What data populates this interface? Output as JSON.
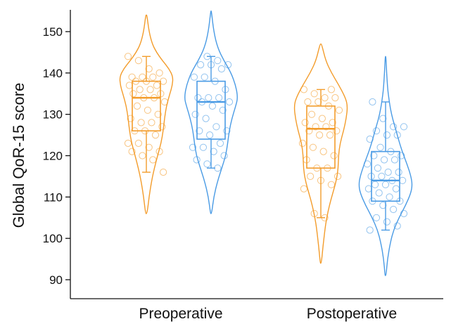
{
  "chart_data": {
    "type": "violin",
    "ylabel": "Global QoR-15 score",
    "ylim": [
      87,
      155
    ],
    "yticks": [
      90,
      100,
      110,
      120,
      130,
      140,
      150
    ],
    "categories": [
      "Preoperative",
      "Postoperative"
    ],
    "series_colors": [
      "#F39C2B",
      "#4A9BE5"
    ],
    "grid": false,
    "legend": "none",
    "groups": [
      {
        "category": "Preoperative",
        "color": "#F39C2B",
        "violin_range": [
          106,
          154
        ],
        "density": [
          [
            106,
            0.03
          ],
          [
            110,
            0.1
          ],
          [
            114,
            0.2
          ],
          [
            117,
            0.3
          ],
          [
            120,
            0.42
          ],
          [
            123,
            0.55
          ],
          [
            126,
            0.63
          ],
          [
            129,
            0.68
          ],
          [
            132,
            0.75
          ],
          [
            135,
            0.88
          ],
          [
            137,
            0.97
          ],
          [
            139,
            1.0
          ],
          [
            141,
            0.85
          ],
          [
            143,
            0.6
          ],
          [
            145,
            0.38
          ],
          [
            147,
            0.22
          ],
          [
            150,
            0.1
          ],
          [
            154,
            0.02
          ]
        ],
        "box": {
          "whisker_low": 116,
          "q1": 126,
          "median": 134,
          "q3": 138,
          "whisker_high": 144
        },
        "points": [
          144,
          143,
          141,
          140,
          139,
          139,
          139,
          138,
          138,
          138,
          137,
          137,
          136,
          136,
          135,
          135,
          134,
          134,
          133,
          132,
          131,
          130,
          129,
          128,
          128,
          127,
          126,
          126,
          125,
          123,
          123,
          122,
          121,
          121,
          120,
          119,
          116
        ]
      },
      {
        "category": "Preoperative",
        "color": "#4A9BE5",
        "violin_range": [
          106,
          155
        ],
        "density": [
          [
            106,
            0.02
          ],
          [
            110,
            0.1
          ],
          [
            114,
            0.25
          ],
          [
            117,
            0.4
          ],
          [
            120,
            0.55
          ],
          [
            123,
            0.62
          ],
          [
            126,
            0.68
          ],
          [
            129,
            0.78
          ],
          [
            132,
            0.92
          ],
          [
            134,
            1.0
          ],
          [
            137,
            0.92
          ],
          [
            140,
            0.75
          ],
          [
            143,
            0.48
          ],
          [
            146,
            0.25
          ],
          [
            150,
            0.1
          ],
          [
            155,
            0.01
          ]
        ],
        "box": {
          "whisker_low": 117,
          "q1": 124,
          "median": 133,
          "q3": 138,
          "whisker_high": 144
        },
        "points": [
          144,
          143,
          142,
          142,
          142,
          141,
          139,
          139,
          138,
          136,
          134,
          134,
          134,
          133,
          133,
          132,
          131,
          130,
          129,
          127,
          126,
          126,
          125,
          123,
          122,
          122,
          121,
          120,
          119,
          118,
          117
        ]
      },
      {
        "category": "Postoperative",
        "color": "#F39C2B",
        "violin_range": [
          94,
          147
        ],
        "density": [
          [
            94,
            0.02
          ],
          [
            98,
            0.08
          ],
          [
            102,
            0.15
          ],
          [
            105,
            0.22
          ],
          [
            108,
            0.32
          ],
          [
            111,
            0.45
          ],
          [
            114,
            0.58
          ],
          [
            117,
            0.65
          ],
          [
            120,
            0.66
          ],
          [
            123,
            0.72
          ],
          [
            126,
            0.85
          ],
          [
            129,
            0.95
          ],
          [
            132,
            1.0
          ],
          [
            134,
            0.92
          ],
          [
            137,
            0.68
          ],
          [
            140,
            0.4
          ],
          [
            143,
            0.18
          ],
          [
            147,
            0.03
          ]
        ],
        "box": {
          "whisker_low": 105,
          "q1": 117,
          "median": 126.5,
          "q3": 132,
          "whisker_high": 136
        },
        "points": [
          136,
          136,
          135,
          134,
          134,
          133,
          133,
          132,
          131,
          130,
          129,
          128,
          128,
          127,
          127,
          126,
          126,
          125,
          125,
          123,
          122,
          121,
          120,
          119,
          117,
          117,
          115,
          115,
          114,
          113,
          112,
          106,
          105
        ]
      },
      {
        "category": "Postoperative",
        "color": "#4A9BE5",
        "violin_range": [
          91,
          144
        ],
        "density": [
          [
            91,
            0.02
          ],
          [
            95,
            0.07
          ],
          [
            99,
            0.18
          ],
          [
            102,
            0.3
          ],
          [
            105,
            0.5
          ],
          [
            108,
            0.75
          ],
          [
            111,
            0.95
          ],
          [
            113,
            1.0
          ],
          [
            115,
            0.95
          ],
          [
            118,
            0.8
          ],
          [
            121,
            0.62
          ],
          [
            124,
            0.48
          ],
          [
            127,
            0.35
          ],
          [
            130,
            0.22
          ],
          [
            133,
            0.14
          ],
          [
            136,
            0.08
          ],
          [
            140,
            0.04
          ],
          [
            144,
            0.01
          ]
        ],
        "box": {
          "whisker_low": 102,
          "q1": 109,
          "median": 114,
          "q3": 121,
          "whisker_high": 133
        },
        "points": [
          133,
          129,
          127,
          127,
          126,
          125,
          125,
          124,
          122,
          121,
          120,
          120,
          119,
          119,
          118,
          117,
          116,
          116,
          115,
          115,
          114,
          114,
          113,
          113,
          112,
          112,
          111,
          110,
          109,
          109,
          108,
          107,
          106,
          105,
          104,
          103,
          102
        ]
      }
    ]
  }
}
